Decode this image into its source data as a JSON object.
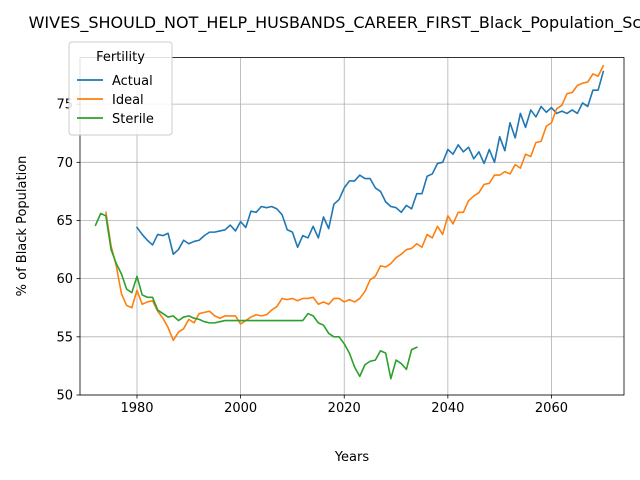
{
  "chart_data": {
    "type": "line",
    "title": "WIVES_SHOULD_NOT_HELP_HUSBANDS_CAREER_FIRST_Black_Population_Scores",
    "xlabel": "Years",
    "ylabel": "% of Black Population",
    "xlim": [
      1969,
      2074
    ],
    "ylim": [
      50,
      79
    ],
    "xticks": [
      1980,
      2000,
      2020,
      2040,
      2060
    ],
    "yticks": [
      50,
      55,
      60,
      65,
      70,
      75
    ],
    "grid": true,
    "legend": {
      "title": "Fertility",
      "placement": "upper-left"
    },
    "series": [
      {
        "name": "Actual",
        "color": "#1f77b4",
        "x": [
          1980,
          1981,
          1982,
          1983,
          1984,
          1985,
          1986,
          1987,
          1988,
          1989,
          1990,
          1991,
          1992,
          1993,
          1994,
          1995,
          1996,
          1997,
          1998,
          1999,
          2000,
          2001,
          2002,
          2003,
          2004,
          2005,
          2006,
          2007,
          2008,
          2009,
          2010,
          2011,
          2012,
          2013,
          2014,
          2015,
          2016,
          2017,
          2018,
          2019,
          2020,
          2021,
          2022,
          2023,
          2024,
          2025,
          2026,
          2027,
          2028,
          2029,
          2030,
          2031,
          2032,
          2033,
          2034,
          2035,
          2036,
          2037,
          2038,
          2039,
          2040,
          2041,
          2042,
          2043,
          2044,
          2045,
          2046,
          2047,
          2048,
          2049,
          2050,
          2051,
          2052,
          2053,
          2054,
          2055,
          2056,
          2057,
          2058,
          2059,
          2060,
          2061,
          2062,
          2063,
          2064,
          2065,
          2066,
          2067,
          2068,
          2069,
          2070
        ],
        "y": [
          64.4,
          63.8,
          63.3,
          62.9,
          63.8,
          63.7,
          63.9,
          62.1,
          62.5,
          63.3,
          63.0,
          63.2,
          63.3,
          63.7,
          64.0,
          64.0,
          64.1,
          64.2,
          64.6,
          64.1,
          64.9,
          64.4,
          65.8,
          65.7,
          66.2,
          66.1,
          66.2,
          66.0,
          65.5,
          64.2,
          64.0,
          62.7,
          63.7,
          63.5,
          64.5,
          63.5,
          65.3,
          64.3,
          66.4,
          66.8,
          67.8,
          68.4,
          68.4,
          68.9,
          68.6,
          68.6,
          67.8,
          67.5,
          66.6,
          66.2,
          66.1,
          65.7,
          66.3,
          66.0,
          67.3,
          67.3,
          68.8,
          69.0,
          69.9,
          70.0,
          71.1,
          70.7,
          71.5,
          70.9,
          71.3,
          70.3,
          70.9,
          69.9,
          71.1,
          70.0,
          72.2,
          71.0,
          73.4,
          72.1,
          74.2,
          73.0,
          74.5,
          73.9,
          74.8,
          74.3,
          74.7,
          74.2,
          74.4,
          74.2,
          74.5,
          74.2,
          75.1,
          74.8,
          76.2,
          76.2,
          77.8
        ]
      },
      {
        "name": "Ideal",
        "color": "#ff7f0e",
        "x": [
          1974,
          1975,
          1976,
          1977,
          1978,
          1979,
          1980,
          1981,
          1982,
          1983,
          1984,
          1985,
          1986,
          1987,
          1988,
          1989,
          1990,
          1991,
          1992,
          1993,
          1994,
          1995,
          1996,
          1997,
          1998,
          1999,
          2000,
          2001,
          2002,
          2003,
          2004,
          2005,
          2006,
          2007,
          2008,
          2009,
          2010,
          2011,
          2012,
          2013,
          2014,
          2015,
          2016,
          2017,
          2018,
          2019,
          2020,
          2021,
          2022,
          2023,
          2024,
          2025,
          2026,
          2027,
          2028,
          2029,
          2030,
          2031,
          2032,
          2033,
          2034,
          2035,
          2036,
          2037,
          2038,
          2039,
          2040,
          2041,
          2042,
          2043,
          2044,
          2045,
          2046,
          2047,
          2048,
          2049,
          2050,
          2051,
          2052,
          2053,
          2054,
          2055,
          2056,
          2057,
          2058,
          2059,
          2060,
          2061,
          2062,
          2063,
          2064,
          2065,
          2066,
          2067,
          2068,
          2069,
          2070
        ],
        "y": [
          65.7,
          62.8,
          61.1,
          58.7,
          57.7,
          57.5,
          59.0,
          57.8,
          58.0,
          58.1,
          57.2,
          56.6,
          55.8,
          54.7,
          55.4,
          55.7,
          56.5,
          56.2,
          57.0,
          57.1,
          57.2,
          56.8,
          56.6,
          56.8,
          56.8,
          56.8,
          56.1,
          56.4,
          56.7,
          56.9,
          56.8,
          56.9,
          57.3,
          57.6,
          58.3,
          58.2,
          58.3,
          58.1,
          58.3,
          58.3,
          58.4,
          57.8,
          58.0,
          57.8,
          58.3,
          58.3,
          58.0,
          58.2,
          58.0,
          58.3,
          58.9,
          59.9,
          60.2,
          61.1,
          61.0,
          61.3,
          61.8,
          62.1,
          62.5,
          62.6,
          63.0,
          62.7,
          63.8,
          63.5,
          64.5,
          63.8,
          65.4,
          64.7,
          65.7,
          65.7,
          66.7,
          67.1,
          67.4,
          68.1,
          68.2,
          68.9,
          68.9,
          69.2,
          69.0,
          69.8,
          69.5,
          70.7,
          70.5,
          71.7,
          71.8,
          73.1,
          73.4,
          74.6,
          74.9,
          75.9,
          76.0,
          76.6,
          76.8,
          76.9,
          77.6,
          77.4,
          78.3
        ]
      },
      {
        "name": "Sterile",
        "color": "#2ca02c",
        "x": [
          1972,
          1973,
          1974,
          1975,
          1976,
          1977,
          1978,
          1979,
          1980,
          1981,
          1982,
          1983,
          1984,
          1985,
          1986,
          1987,
          1988,
          1989,
          1990,
          1991,
          1992,
          1993,
          1994,
          1995,
          1996,
          1997,
          1998,
          1999,
          2000,
          2001,
          2002,
          2003,
          2004,
          2005,
          2006,
          2007,
          2008,
          2009,
          2010,
          2011,
          2012,
          2013,
          2014,
          2015,
          2016,
          2017,
          2018,
          2019,
          2020,
          2021,
          2022,
          2023,
          2024,
          2025,
          2026,
          2027,
          2028,
          2029,
          2030,
          2031,
          2032,
          2033,
          2034
        ],
        "y": [
          64.6,
          65.6,
          65.4,
          62.5,
          61.3,
          60.4,
          59.1,
          58.8,
          60.2,
          58.6,
          58.4,
          58.4,
          57.3,
          57.0,
          56.7,
          56.8,
          56.4,
          56.7,
          56.8,
          56.6,
          56.5,
          56.3,
          56.2,
          56.2,
          56.3,
          56.4,
          56.4,
          56.4,
          56.4,
          56.4,
          56.4,
          56.4,
          56.4,
          56.4,
          56.4,
          56.4,
          56.4,
          56.4,
          56.4,
          56.4,
          56.4,
          57.0,
          56.8,
          56.2,
          56.0,
          55.3,
          55.0,
          55.0,
          54.4,
          53.6,
          52.4,
          51.6,
          52.6,
          52.9,
          53.0,
          53.8,
          53.6,
          51.4,
          53.0,
          52.7,
          52.2,
          53.9,
          54.1
        ]
      }
    ]
  }
}
